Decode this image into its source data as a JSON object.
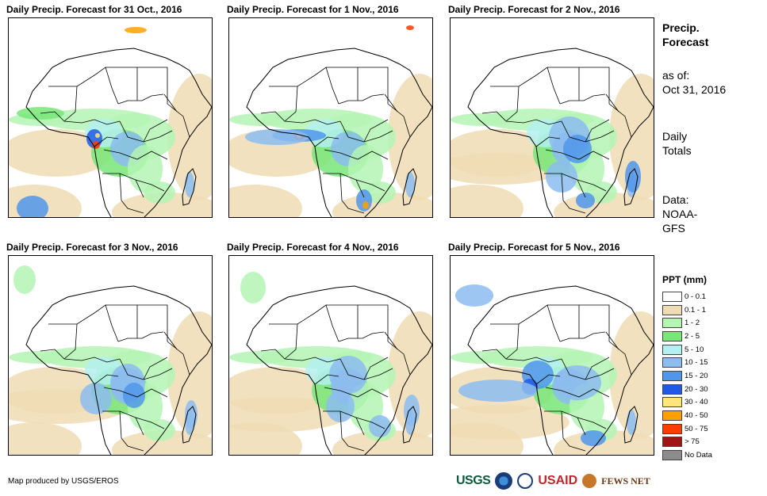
{
  "panels": [
    {
      "title": "Daily Precip. Forecast for 31 Oct., 2016",
      "variant": 0
    },
    {
      "title": "Daily Precip. Forecast for 1 Nov., 2016",
      "variant": 1
    },
    {
      "title": "Daily Precip. Forecast for 2 Nov., 2016",
      "variant": 2
    },
    {
      "title": "Daily Precip. Forecast for 3 Nov., 2016",
      "variant": 3
    },
    {
      "title": "Daily Precip. Forecast for 4 Nov., 2016",
      "variant": 4
    },
    {
      "title": "Daily Precip. Forecast for 5 Nov., 2016",
      "variant": 5
    }
  ],
  "sidebar": {
    "heading_line1": "Precip.",
    "heading_line2": "Forecast",
    "asof_label": "as of:",
    "asof_date": "Oct 31, 2016",
    "totals_line1": "Daily",
    "totals_line2": "Totals",
    "data_line1": "Data:",
    "data_line2": "NOAA-",
    "data_line3": "GFS"
  },
  "legend": {
    "title": "PPT (mm)",
    "items": [
      {
        "label": "0 - 0.1",
        "color": "#ffffff"
      },
      {
        "label": "0.1 - 1",
        "color": "#f0dcb4"
      },
      {
        "label": "1 - 2",
        "color": "#b4f5b4"
      },
      {
        "label": "2 - 5",
        "color": "#78e678"
      },
      {
        "label": "5 - 10",
        "color": "#b4f0f0"
      },
      {
        "label": "10 - 15",
        "color": "#8cbcf0"
      },
      {
        "label": "15 - 20",
        "color": "#5096eb"
      },
      {
        "label": "20 - 30",
        "color": "#1e5ae6"
      },
      {
        "label": "30 - 40",
        "color": "#ffe678"
      },
      {
        "label": "40 - 50",
        "color": "#ffa000"
      },
      {
        "label": "50 - 75",
        "color": "#ff3c00"
      },
      {
        "label": "> 75",
        "color": "#a01414"
      },
      {
        "label": "No Data",
        "color": "#8c8c8c"
      }
    ]
  },
  "footer": {
    "credit": "Map produced by USGS/EROS",
    "logos": {
      "usgs": "USGS",
      "usaid": "USAID",
      "fews": "FEWS NET"
    }
  }
}
